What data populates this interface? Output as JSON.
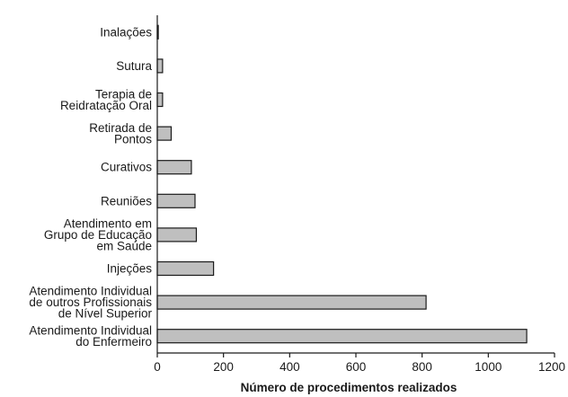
{
  "chart_data": {
    "type": "bar",
    "orientation": "horizontal",
    "categories": [
      [
        "Inalações"
      ],
      [
        "Sutura"
      ],
      [
        "Terapia de",
        "Reidratação Oral"
      ],
      [
        "Retirada de",
        "Pontos"
      ],
      [
        "Curativos"
      ],
      [
        "Reuniões"
      ],
      [
        "Atendimento em",
        "Grupo de Educação",
        "em Saúde"
      ],
      [
        "Injeções"
      ],
      [
        "Atendimento Individual",
        "de outros Profissionais",
        "de Nível Superior"
      ],
      [
        "Atendimento Individual",
        "do Enfermeiro"
      ]
    ],
    "values": [
      3,
      16,
      16,
      42,
      103,
      114,
      118,
      170,
      812,
      1116
    ],
    "xlabel": "Número de procedimentos realizados",
    "ylabel": "",
    "xlim": [
      0,
      1200
    ],
    "xticks": [
      "0",
      "200",
      "400",
      "600",
      "800",
      "1000",
      "1200"
    ],
    "grid": false,
    "bar_color": "#bfbfbf"
  }
}
